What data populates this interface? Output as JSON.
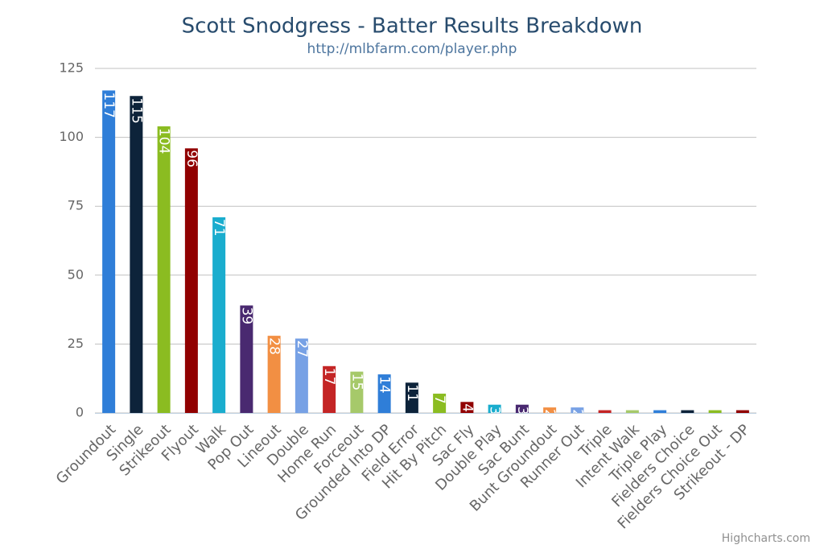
{
  "chart_data": {
    "type": "bar",
    "title": "Scott Snodgress - Batter Results Breakdown",
    "subtitle": "http://mlbfarm.com/player.php",
    "credits": "Highcharts.com",
    "categories": [
      "Groundout",
      "Single",
      "Strikeout",
      "Flyout",
      "Walk",
      "Pop Out",
      "Lineout",
      "Double",
      "Home Run",
      "Forceout",
      "Grounded Into DP",
      "Field Error",
      "Hit By Pitch",
      "Sac Fly",
      "Double Play",
      "Sac Bunt",
      "Bunt Groundout",
      "Runner Out",
      "Triple",
      "Intent Walk",
      "Triple Play",
      "Fielders Choice",
      "Fielders Choice Out",
      "Strikeout - DP"
    ],
    "values": [
      117,
      115,
      104,
      96,
      71,
      39,
      28,
      27,
      17,
      15,
      14,
      11,
      7,
      4,
      3,
      3,
      2,
      2,
      1,
      1,
      1,
      1,
      1,
      1
    ],
    "colors": [
      "#2f7ed8",
      "#0d233a",
      "#8bbc21",
      "#910000",
      "#1aadce",
      "#492970",
      "#f28f43",
      "#77a1e5",
      "#c42525",
      "#a6c96a"
    ],
    "ylim": [
      0,
      125
    ],
    "yticks": [
      0,
      25,
      50,
      75,
      100,
      125
    ],
    "grid": true
  }
}
